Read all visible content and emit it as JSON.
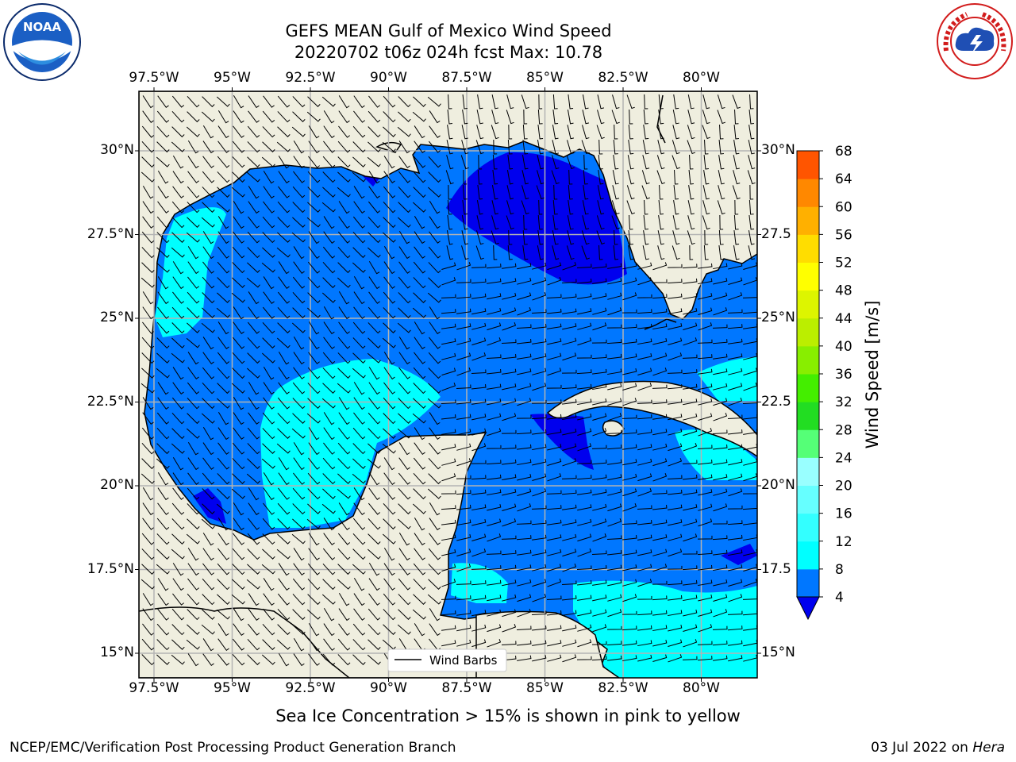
{
  "title": {
    "line1": "GEFS MEAN Gulf of Mexico Wind Speed",
    "line2": "20220702 t06z 024h fcst   Max: 10.78"
  },
  "lon_ticks": [
    "97.5°W",
    "95°W",
    "92.5°W",
    "90°W",
    "87.5°W",
    "85°W",
    "82.5°W",
    "80°W"
  ],
  "lat_ticks": [
    "30°N",
    "27.5°N",
    "25°N",
    "22.5°N",
    "20°N",
    "17.5°N",
    "15°N"
  ],
  "lat_ticks_right": [
    "30°N",
    "27.5",
    "25°N",
    "22.5",
    "20°N",
    "17.5",
    "15°N"
  ],
  "colorbar": {
    "label": "Wind Speed [m/s]",
    "levels": [
      "4",
      "8",
      "12",
      "16",
      "20",
      "24",
      "28",
      "32",
      "36",
      "40",
      "44",
      "48",
      "52",
      "56",
      "60",
      "64",
      "68"
    ],
    "colors": [
      "#0077ff",
      "#00ffff",
      "#33ffff",
      "#66ffff",
      "#99ffff",
      "#55ff77",
      "#22dd22",
      "#44ee00",
      "#88ee00",
      "#bbee00",
      "#ddf500",
      "#ffff00",
      "#ffdd00",
      "#ffb000",
      "#ff8800",
      "#ff5500",
      "#ff2200",
      "#ff0000"
    ],
    "extend_color": "#0000ee"
  },
  "legend": {
    "label": "Wind Barbs"
  },
  "logos": {
    "noaa": "NOAA",
    "nws": "NATIONAL WEATHER SERVICE"
  },
  "colors": {
    "land": "#efeedf",
    "ocean_base": "#0077ff",
    "calm": "#0000ee",
    "cyan": "#00ffff",
    "grid": "#b3b3b3"
  },
  "seaice_note": "Sea Ice Concentration > 15% is shown in pink to yellow",
  "footer": {
    "left": "NCEP/EMC/Verification Post Processing Product Generation Branch",
    "right_prefix": "03 Jul 2022 on ",
    "right_host": "Hera"
  }
}
